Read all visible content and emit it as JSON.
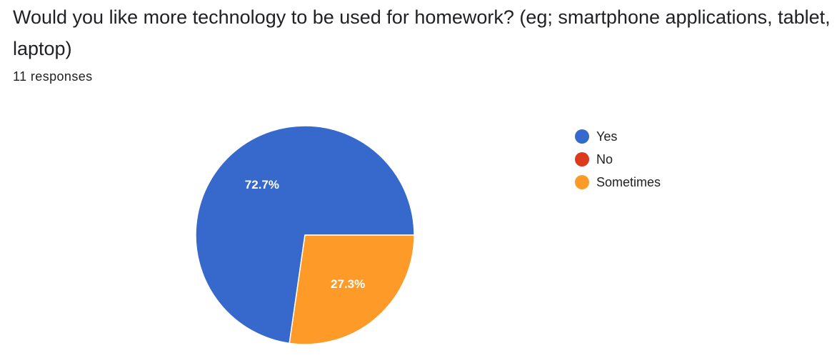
{
  "question": {
    "title": "Would you like more technology to be used for homework? (eg; smartphone applications, tablet, laptop)",
    "responses": "11 responses"
  },
  "chart_data": {
    "type": "pie",
    "categories": [
      "Yes",
      "No",
      "Sometimes"
    ],
    "values": [
      8,
      0,
      3
    ],
    "labels": [
      "72.7%",
      "",
      "27.3%"
    ],
    "colors": [
      "#3769cc",
      "#dc3a1c",
      "#fd9a28"
    ],
    "legend_position": "right",
    "start_angle_deg": 0,
    "direction": "counterclockwise",
    "title": "",
    "xlabel": "",
    "ylabel": ""
  }
}
